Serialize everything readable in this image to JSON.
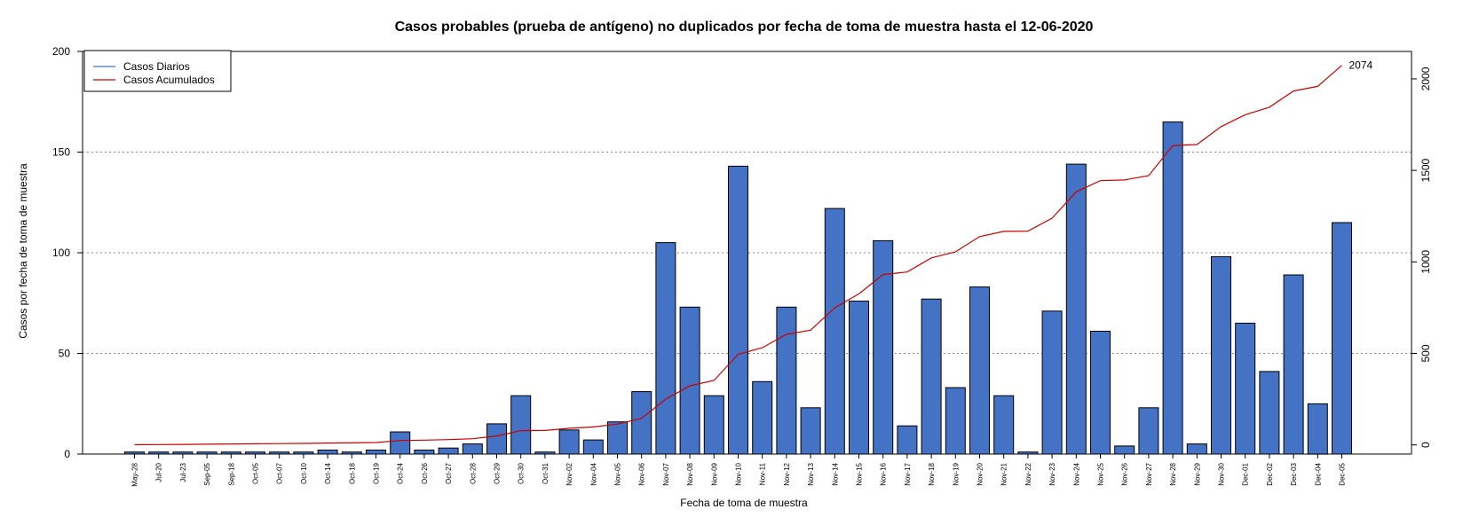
{
  "chart_data": {
    "type": "bar",
    "title": "Casos probables (prueba de antígeno) no duplicados por fecha de toma de muestra hasta el 12-06-2020",
    "xlabel": "Fecha de toma de muestra",
    "ylabel": "Casos por fecha de toma de muestra",
    "ylim": [
      0,
      200
    ],
    "y_ticks": [
      "0",
      "50",
      "100",
      "150",
      "200"
    ],
    "y2lim": [
      -50,
      2150
    ],
    "y2_ticks": [
      "0",
      "500",
      "1000",
      "1500",
      "2000"
    ],
    "grid": "horizontal dotted",
    "legend_position": "top-left",
    "categories": [
      "May-28",
      "Jul-20",
      "Jul-23",
      "Sep-05",
      "Sep-18",
      "Oct-05",
      "Oct-07",
      "Oct-10",
      "Oct-14",
      "Oct-18",
      "Oct-19",
      "Oct-24",
      "Oct-26",
      "Oct-27",
      "Oct-28",
      "Oct-29",
      "Oct-30",
      "Oct-31",
      "Nov-02",
      "Nov-04",
      "Nov-05",
      "Nov-06",
      "Nov-07",
      "Nov-08",
      "Nov-09",
      "Nov-10",
      "Nov-11",
      "Nov-12",
      "Nov-13",
      "Nov-14",
      "Nov-15",
      "Nov-16",
      "Nov-17",
      "Nov-18",
      "Nov-19",
      "Nov-20",
      "Nov-21",
      "Nov-22",
      "Nov-23",
      "Nov-24",
      "Nov-25",
      "Nov-26",
      "Nov-27",
      "Nov-28",
      "Nov-29",
      "Nov-30",
      "Dec-01",
      "Dec-02",
      "Dec-03",
      "Dec-04",
      "Dec-05"
    ],
    "series": [
      {
        "name": "Casos Diarios",
        "type": "bar",
        "axis": "left",
        "color": "#4472C4",
        "values": [
          1,
          1,
          1,
          1,
          1,
          1,
          1,
          1,
          2,
          1,
          2,
          11,
          2,
          3,
          5,
          15,
          29,
          1,
          12,
          7,
          16,
          31,
          105,
          73,
          29,
          143,
          36,
          73,
          23,
          122,
          76,
          106,
          14,
          77,
          33,
          83,
          29,
          1,
          71,
          144,
          61,
          4,
          23,
          165,
          5,
          98,
          65,
          41,
          89,
          25,
          115
        ]
      },
      {
        "name": "Casos Acumulados",
        "type": "line",
        "axis": "right",
        "color": "#CC0000",
        "values": [
          1,
          2,
          3,
          4,
          5,
          6,
          7,
          8,
          10,
          11,
          13,
          24,
          26,
          29,
          34,
          49,
          78,
          79,
          91,
          98,
          114,
          145,
          250,
          323,
          352,
          495,
          531,
          604,
          627,
          749,
          825,
          931,
          945,
          1022,
          1055,
          1138,
          1167,
          1168,
          1239,
          1383,
          1444,
          1448,
          1471,
          1636,
          1641,
          1739,
          1804,
          1845,
          1934,
          1959,
          2074
        ]
      }
    ],
    "end_label": "2074"
  }
}
